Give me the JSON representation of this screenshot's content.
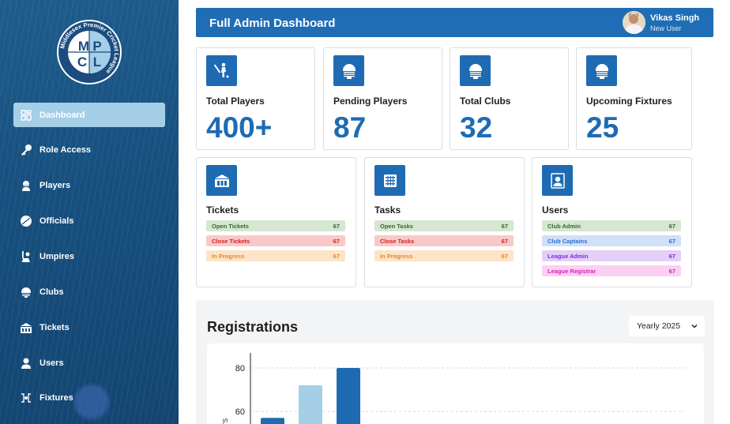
{
  "brand": {
    "logo_text": "Middlesex Premier Cricket League",
    "letters": [
      "M",
      "P",
      "C",
      "L"
    ]
  },
  "sidebar": {
    "items": [
      {
        "label": "Dashboard",
        "icon": "dashboard-icon",
        "active": true
      },
      {
        "label": "Role Access",
        "icon": "key-icon"
      },
      {
        "label": "Players",
        "icon": "player-icon"
      },
      {
        "label": "Officials",
        "icon": "ball-icon"
      },
      {
        "label": "Umpires",
        "icon": "umpire-icon"
      },
      {
        "label": "Clubs",
        "icon": "helmet-icon"
      },
      {
        "label": "Tickets",
        "icon": "stadium-icon"
      },
      {
        "label": "Users",
        "icon": "user-icon"
      },
      {
        "label": "Fixtures",
        "icon": "fixtures-icon"
      }
    ]
  },
  "header": {
    "title": "Full Admin Dashboard",
    "user_name": "Vikas Singh",
    "user_role": "New User"
  },
  "stats": [
    {
      "label": "Total Players",
      "value": "400+",
      "icon": "batsman-icon"
    },
    {
      "label": "Pending Players",
      "value": "87",
      "icon": "helmet-icon"
    },
    {
      "label": "Total Clubs",
      "value": "32",
      "icon": "helmet-icon"
    },
    {
      "label": "Upcoming Fixtures",
      "value": "25",
      "icon": "helmet-icon"
    }
  ],
  "tickets": {
    "title": "Tickets",
    "rows": [
      {
        "label": "Open Tickets",
        "value": "67"
      },
      {
        "label": "Close Tickets",
        "value": "67"
      },
      {
        "label": "In Progress",
        "value": "67"
      }
    ]
  },
  "tasks": {
    "title": "Tasks",
    "rows": [
      {
        "label": "Open Tasks",
        "value": "67"
      },
      {
        "label": "Close Tasks",
        "value": "67"
      },
      {
        "label": "In Progress",
        "value": "67"
      }
    ]
  },
  "users": {
    "title": "Users",
    "rows": [
      {
        "label": "Club Admin",
        "value": "67"
      },
      {
        "label": "Club Captains",
        "value": "67"
      },
      {
        "label": "League Admin",
        "value": "67"
      },
      {
        "label": "League Registrar",
        "value": "67"
      }
    ]
  },
  "registrations": {
    "title": "Registrations",
    "period": "Yearly 2025"
  },
  "chart_data": {
    "type": "bar",
    "ylabel": "ers",
    "yticks": [
      60,
      80
    ],
    "values": [
      57,
      72,
      80
    ],
    "colors": [
      "#1e6bb4",
      "#a5cee7",
      "#1e6bb4"
    ]
  },
  "colors": {
    "primary": "#1e6bb4",
    "sidebar": "#17507f",
    "active": "#a5cee7"
  }
}
